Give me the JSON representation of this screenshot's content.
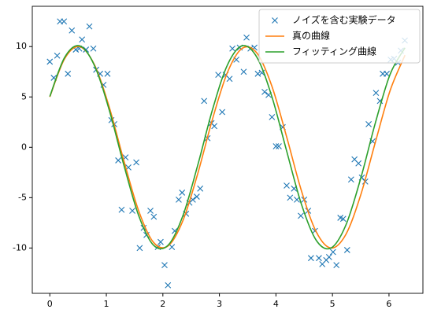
{
  "chart_data": {
    "type": "line",
    "xlim": [
      -0.31,
      6.6
    ],
    "ylim": [
      -14.5,
      14.0
    ],
    "xticks": [
      0,
      1,
      2,
      3,
      4,
      5,
      6
    ],
    "yticks": [
      -10,
      -5,
      0,
      5,
      10
    ],
    "legend": "upper right",
    "series": [
      {
        "name": "ノイズを含む実験データ",
        "color": "#1f77b4",
        "marker": "x",
        "x": [
          0,
          0.07,
          0.13,
          0.18,
          0.25,
          0.32,
          0.39,
          0.46,
          0.52,
          0.57,
          0.64,
          0.7,
          0.77,
          0.82,
          0.89,
          0.95,
          1.02,
          1.09,
          1.14,
          1.21,
          1.27,
          1.34,
          1.39,
          1.46,
          1.53,
          1.59,
          1.66,
          1.71,
          1.78,
          1.84,
          1.91,
          1.96,
          2.03,
          2.09,
          2.16,
          2.21,
          2.28,
          2.34,
          2.41,
          2.47,
          2.53,
          2.6,
          2.66,
          2.73,
          2.79,
          2.86,
          2.91,
          2.98,
          3.05,
          3.11,
          3.18,
          3.23,
          3.3,
          3.36,
          3.43,
          3.48,
          3.55,
          3.62,
          3.68,
          3.75,
          3.8,
          3.87,
          3.93,
          4.0,
          4.05,
          4.12,
          4.19,
          4.25,
          4.32,
          4.37,
          4.44,
          4.5,
          4.57,
          4.62,
          4.69,
          4.76,
          4.82,
          4.89,
          4.94,
          5.01,
          5.07,
          5.14,
          5.19,
          5.26,
          5.33,
          5.39,
          5.46,
          5.52,
          5.58,
          5.64,
          5.71,
          5.77,
          5.84,
          5.89,
          5.96,
          6.03,
          6.09,
          6.16,
          6.21,
          6.28
        ],
        "values": [
          8.5,
          6.9,
          9.1,
          12.5,
          12.5,
          7.3,
          11.6,
          9.7,
          9.8,
          10.7,
          9.7,
          12.0,
          9.8,
          7.7,
          7.3,
          6.2,
          7.3,
          2.7,
          2.3,
          -1.3,
          -6.2,
          -1.0,
          -2.0,
          -6.3,
          -1.5,
          -10.0,
          -8.0,
          -8.7,
          -6.3,
          -6.9,
          -9.9,
          -9.4,
          -11.7,
          -13.7,
          -9.9,
          -8.3,
          -5.2,
          -4.5,
          -6.6,
          -5.5,
          -5.2,
          -4.9,
          -4.1,
          4.6,
          0.9,
          2.4,
          2.1,
          7.2,
          3.5,
          7.2,
          6.8,
          9.8,
          8.7,
          9.9,
          7.5,
          10.9,
          9.8,
          9.9,
          7.3,
          7.4,
          5.5,
          5.2,
          3.0,
          0.1,
          0.1,
          2.0,
          -3.8,
          -5.0,
          -4.1,
          -5.2,
          -6.8,
          -5.2,
          -6.3,
          -11.0,
          -8.3,
          -11.0,
          -11.6,
          -11.2,
          -10.9,
          -10.4,
          -11.7,
          -7.0,
          -7.1,
          -10.2,
          -3.2,
          -1.2,
          -1.6,
          -3.0,
          -3.4,
          2.3,
          0.6,
          5.4,
          4.6,
          7.3,
          7.3,
          8.7,
          8.8,
          8.4,
          9.6,
          10.6
        ]
      },
      {
        "name": "真の曲線",
        "color": "#ff7f0e",
        "x": [
          0,
          0.2618,
          0.5236,
          0.7854,
          1.0472,
          1.309,
          1.5708,
          1.8326,
          2.0944,
          2.3562,
          2.618,
          2.8798,
          3.1416,
          3.4034,
          3.6652,
          3.927,
          4.1888,
          4.4506,
          4.7124,
          4.9742,
          5.236,
          5.4978,
          5.7596,
          6.0214,
          6.2832
        ],
        "values": [
          5.0,
          8.79,
          9.99,
          8.24,
          4.07,
          -1.31,
          -6.29,
          -9.43,
          -9.78,
          -7.25,
          -2.59,
          2.84,
          7.43,
          9.83,
          9.34,
          6.09,
          1.05,
          -4.31,
          -8.39,
          -10.0,
          -8.66,
          -4.77,
          0.52,
          5.66,
          9.14
        ]
      },
      {
        "name": "フィッティング曲線",
        "color": "#2ca02c",
        "x": [
          0,
          0.2618,
          0.5236,
          0.7854,
          1.0472,
          1.309,
          1.5708,
          1.8326,
          2.0944,
          2.3562,
          2.618,
          2.8798,
          3.1416,
          3.4034,
          3.6652,
          3.927,
          4.1888,
          4.4506,
          4.7124,
          4.9742,
          5.236,
          5.4978,
          5.7596,
          6.0214,
          6.2832
        ],
        "values": [
          5.05,
          8.92,
          10.08,
          8.17,
          3.78,
          -1.75,
          -6.76,
          -9.71,
          -9.71,
          -6.76,
          -1.75,
          3.78,
          8.17,
          10.08,
          8.92,
          5.05,
          -0.35,
          -5.65,
          -9.23,
          -10.0,
          -7.74,
          -3.12,
          2.44,
          7.27,
          9.88
        ]
      }
    ]
  }
}
